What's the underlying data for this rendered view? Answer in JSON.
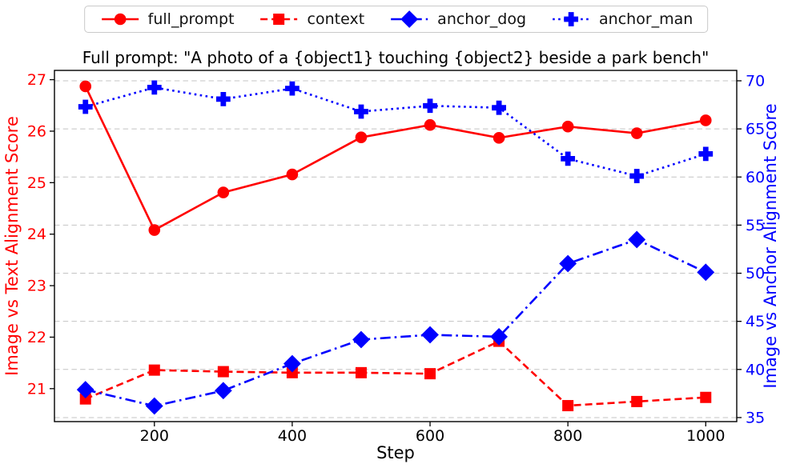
{
  "chart_data": {
    "type": "line",
    "title": "Full prompt: \"A photo of a {object1} touching {object2} beside a park bench\"",
    "xlabel": "Step",
    "ylabel_left": "Image vs Text Alignment Score",
    "ylabel_right": "Image vs Anchor Alignment Score",
    "axis_colors": {
      "left": "#ff0000",
      "right": "#0000ff",
      "x": "#000000"
    },
    "grid": {
      "visible": true,
      "orientation": "horizontal",
      "style": "dashed",
      "color": "#c4c4c4",
      "at_axis": "right"
    },
    "legend_position": "top-center-outside",
    "x": [
      100,
      200,
      300,
      400,
      500,
      600,
      700,
      800,
      900,
      1000
    ],
    "xlim": [
      55,
      1045
    ],
    "xticks": [
      200,
      400,
      600,
      800,
      1000
    ],
    "ylim_left": [
      20.36,
      27.18
    ],
    "yticks_left": [
      21,
      22,
      23,
      24,
      25,
      26,
      27
    ],
    "ylim_right": [
      34.58,
      71.08
    ],
    "yticks_right": [
      35,
      40,
      45,
      50,
      55,
      60,
      65,
      70
    ],
    "series": [
      {
        "name": "full_prompt",
        "axis": "left",
        "color": "#ff0000",
        "marker": "circle",
        "line": "solid",
        "values": [
          26.87,
          24.08,
          24.81,
          25.16,
          25.88,
          26.12,
          25.87,
          26.09,
          25.96,
          26.21
        ]
      },
      {
        "name": "context",
        "axis": "left",
        "color": "#ff0000",
        "marker": "square",
        "line": "dashed",
        "values": [
          20.8,
          21.36,
          21.33,
          21.31,
          21.31,
          21.29,
          21.92,
          20.67,
          20.75,
          20.83
        ]
      },
      {
        "name": "anchor_dog",
        "axis": "right",
        "color": "#0000ff",
        "marker": "diamond",
        "line": "dashdot",
        "values": [
          37.9,
          36.2,
          37.8,
          40.6,
          43.1,
          43.6,
          43.4,
          51.0,
          53.5,
          50.1
        ]
      },
      {
        "name": "anchor_man",
        "axis": "right",
        "color": "#0000ff",
        "marker": "plus",
        "line": "dotted",
        "values": [
          67.3,
          69.3,
          68.1,
          69.2,
          66.8,
          67.4,
          67.2,
          61.9,
          60.1,
          62.4
        ]
      }
    ]
  }
}
